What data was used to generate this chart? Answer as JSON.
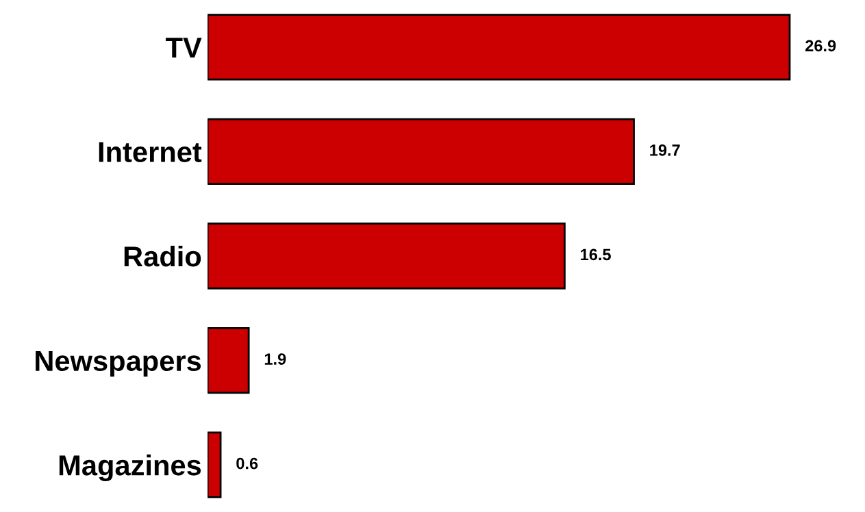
{
  "chart_data": {
    "type": "bar",
    "orientation": "horizontal",
    "categories": [
      "TV",
      "Internet",
      "Radio",
      "Newspapers",
      "Magazines"
    ],
    "values": [
      26.9,
      19.7,
      16.5,
      1.9,
      0.6
    ],
    "color": "#cc0000",
    "data_labels": true,
    "grid": false,
    "tick_labels": "y"
  }
}
